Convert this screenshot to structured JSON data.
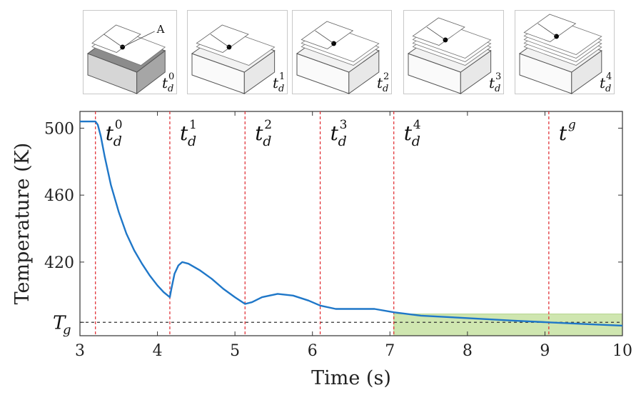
{
  "thumbnails": [
    {
      "label": "t",
      "sub": "d",
      "sup": "0",
      "layers": 1,
      "marker": "A",
      "shaded": true
    },
    {
      "label": "t",
      "sub": "d",
      "sup": "1",
      "layers": 1,
      "marker": "",
      "shaded": false
    },
    {
      "label": "t",
      "sub": "d",
      "sup": "2",
      "layers": 2,
      "marker": "",
      "shaded": false
    },
    {
      "label": "t",
      "sub": "d",
      "sup": "3",
      "layers": 3,
      "marker": "",
      "shaded": false
    },
    {
      "label": "t",
      "sub": "d",
      "sup": "4",
      "layers": 4,
      "marker": "",
      "shaded": false
    }
  ],
  "chart_data": {
    "type": "line",
    "title": "",
    "xlabel": "Time (s)",
    "ylabel": "Temperature (K)",
    "xlim": [
      3,
      10
    ],
    "ylim": [
      376,
      510
    ],
    "xticks": [
      3,
      4,
      5,
      6,
      7,
      8,
      9,
      10
    ],
    "yticks": [
      {
        "value": 500,
        "label": "500"
      },
      {
        "value": 460,
        "label": "460"
      },
      {
        "value": 420,
        "label": "420"
      }
    ],
    "tg": {
      "value": 384,
      "label": "T",
      "sub": "g"
    },
    "grid": false,
    "line_color": "#1f77c8",
    "vline_color": "#e0282e",
    "highlight_color": "#cfe6b0",
    "highlight": {
      "x0": 7.05,
      "x1": 10,
      "y0": 376,
      "y1": 389
    },
    "vlines": [
      {
        "x": 3.2,
        "base": "t",
        "sub": "d",
        "sup": "0"
      },
      {
        "x": 4.16,
        "base": "t",
        "sub": "d",
        "sup": "1"
      },
      {
        "x": 5.13,
        "base": "t",
        "sub": "d",
        "sup": "2"
      },
      {
        "x": 6.1,
        "base": "t",
        "sub": "d",
        "sup": "3"
      },
      {
        "x": 7.05,
        "base": "t",
        "sub": "d",
        "sup": "4"
      },
      {
        "x": 9.05,
        "base": "t",
        "sub": "",
        "sup": "g"
      }
    ],
    "series": [
      {
        "values": [
          [
            3.0,
            504
          ],
          [
            3.2,
            504
          ],
          [
            3.23,
            502
          ],
          [
            3.27,
            495
          ],
          [
            3.32,
            483
          ],
          [
            3.4,
            466
          ],
          [
            3.5,
            450
          ],
          [
            3.6,
            437
          ],
          [
            3.7,
            427
          ],
          [
            3.8,
            419
          ],
          [
            3.9,
            412
          ],
          [
            4.0,
            406
          ],
          [
            4.08,
            402
          ],
          [
            4.16,
            399
          ],
          [
            4.18,
            404
          ],
          [
            4.22,
            413
          ],
          [
            4.27,
            418
          ],
          [
            4.32,
            420
          ],
          [
            4.4,
            419
          ],
          [
            4.55,
            415
          ],
          [
            4.7,
            410
          ],
          [
            4.85,
            404
          ],
          [
            5.0,
            399
          ],
          [
            5.13,
            395
          ],
          [
            5.22,
            396
          ],
          [
            5.35,
            399
          ],
          [
            5.55,
            401
          ],
          [
            5.75,
            400
          ],
          [
            5.95,
            397
          ],
          [
            6.1,
            394
          ],
          [
            6.3,
            392
          ],
          [
            6.55,
            392
          ],
          [
            6.8,
            392
          ],
          [
            7.05,
            390
          ],
          [
            7.4,
            388
          ],
          [
            7.8,
            387
          ],
          [
            8.2,
            386
          ],
          [
            8.6,
            385
          ],
          [
            9.05,
            384
          ],
          [
            9.5,
            383
          ],
          [
            10.0,
            382
          ]
        ]
      }
    ]
  }
}
